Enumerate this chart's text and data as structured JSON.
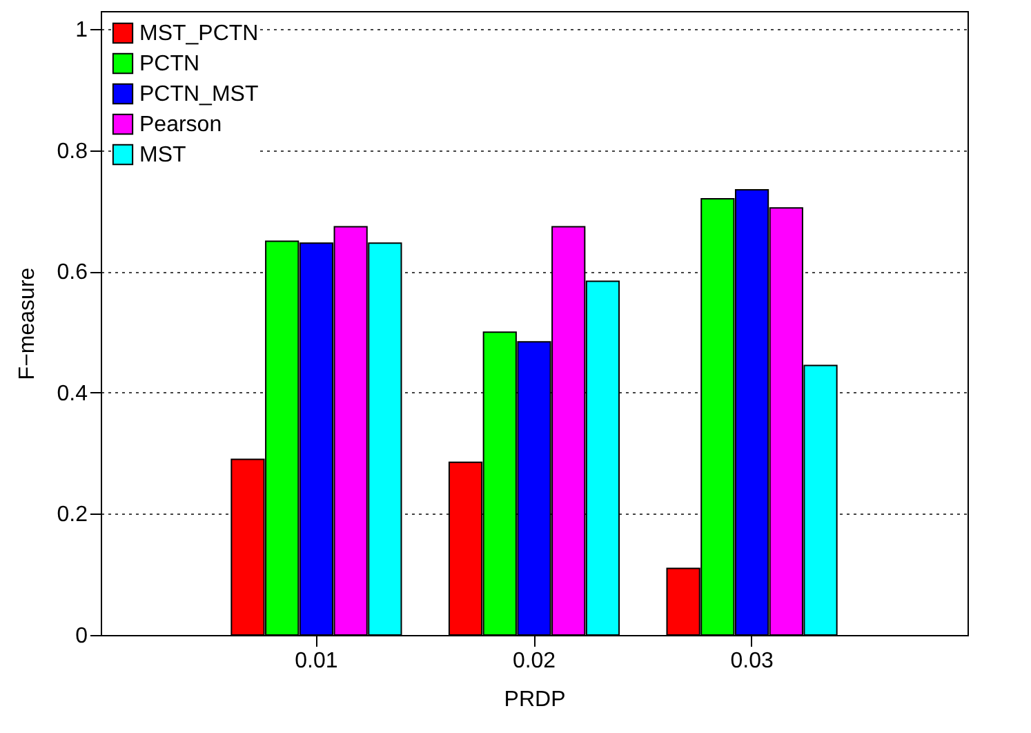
{
  "chart_data": {
    "type": "bar",
    "xlabel": "PRDP",
    "ylabel": "F−measure",
    "categories": [
      "0.01",
      "0.02",
      "0.03"
    ],
    "series": [
      {
        "name": "MST_PCTN",
        "color": "#ff0000",
        "values": [
          0.29,
          0.285,
          0.11
        ]
      },
      {
        "name": "PCTN",
        "color": "#00ff00",
        "values": [
          0.65,
          0.5,
          0.72
        ]
      },
      {
        "name": "PCTN_MST",
        "color": "#0000ff",
        "values": [
          0.647,
          0.484,
          0.735
        ]
      },
      {
        "name": "Pearson",
        "color": "#ff00ff",
        "values": [
          0.674,
          0.674,
          0.705
        ]
      },
      {
        "name": "MST",
        "color": "#00ffff",
        "values": [
          0.647,
          0.584,
          0.445
        ]
      }
    ],
    "ylim": [
      0,
      1.03
    ],
    "yticks": [
      0,
      0.2,
      0.4,
      0.6,
      0.8,
      1
    ],
    "grid": "y",
    "legend": "top left"
  }
}
